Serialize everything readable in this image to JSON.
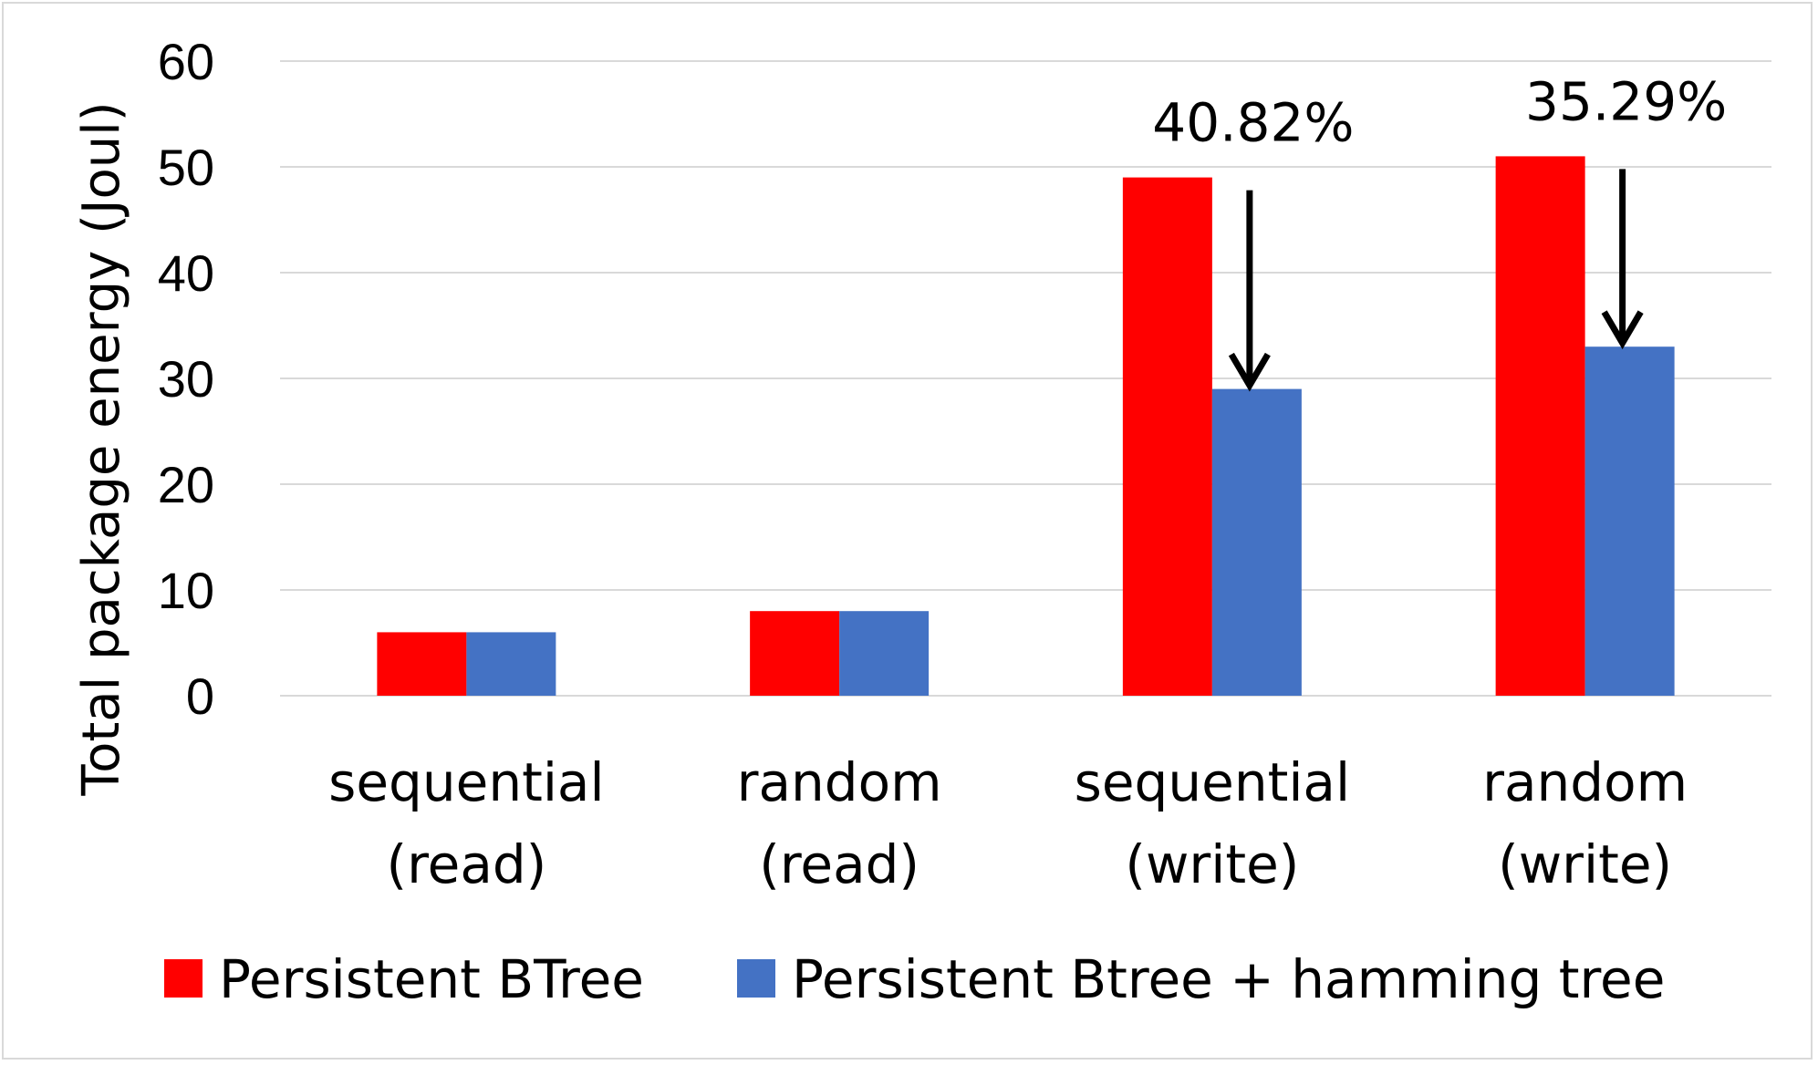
{
  "chart_data": {
    "type": "bar",
    "categories": [
      [
        "sequential",
        "(read)"
      ],
      [
        "random",
        "(read)"
      ],
      [
        "sequential",
        "(write)"
      ],
      [
        "random",
        "(write)"
      ]
    ],
    "series": [
      {
        "name": "Persistent BTree",
        "color": "#ff0000",
        "values": [
          6,
          8,
          49,
          51
        ]
      },
      {
        "name": "Persistent Btree + hamming tree",
        "color": "#4472c4",
        "values": [
          6,
          8,
          29,
          33
        ]
      }
    ],
    "ylabel": "Total package energy (Joul)",
    "xlabel": "",
    "ylim": [
      0,
      60
    ],
    "yticks": [
      0,
      10,
      20,
      30,
      40,
      50,
      60
    ],
    "grid": true,
    "legend_position": "bottom",
    "annotations": [
      {
        "category_index": 2,
        "text": "40.82%",
        "from": 49,
        "to": 29
      },
      {
        "category_index": 3,
        "text": "35.29%",
        "from": 51,
        "to": 33
      }
    ]
  }
}
